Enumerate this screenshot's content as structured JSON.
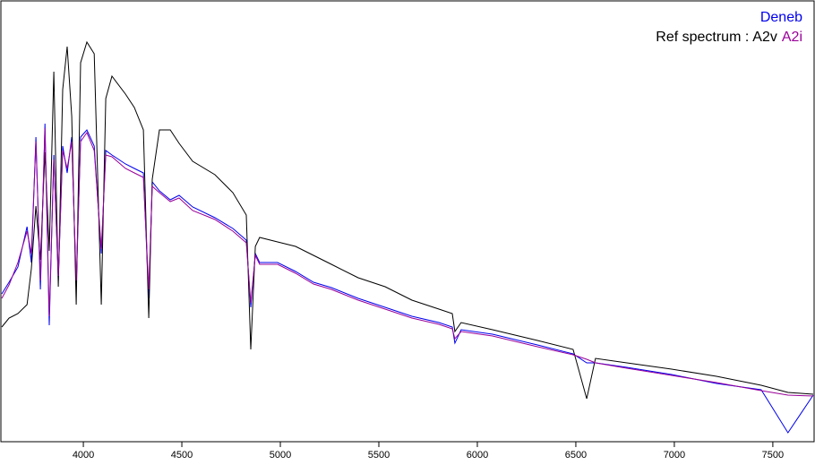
{
  "chart_data": {
    "type": "line",
    "legend_prefix": "Ref spectrum :",
    "x": [
      3586,
      3623,
      3668,
      3714,
      3736,
      3759,
      3782,
      3805,
      3827,
      3850,
      3873,
      3895,
      3918,
      3941,
      3964,
      3986,
      4018,
      4055,
      4091,
      4114,
      4145,
      4214,
      4259,
      4305,
      4332,
      4350,
      4386,
      4441,
      4486,
      4555,
      4668,
      4759,
      4827,
      4850,
      4873,
      4895,
      4986,
      5077,
      5168,
      5259,
      5395,
      5532,
      5668,
      5805,
      5873,
      5886,
      5918,
      6077,
      6305,
      6486,
      6555,
      6600,
      6759,
      6986,
      7214,
      7441,
      7577,
      7705
    ],
    "series": [
      {
        "name": "Deneb",
        "color": "#0000ee",
        "values": [
          165,
          178,
          195,
          240,
          200,
          340,
          170,
          355,
          130,
          320,
          180,
          330,
          300,
          340,
          173,
          340,
          348,
          330,
          210,
          325,
          320,
          310,
          305,
          300,
          160,
          290,
          280,
          270,
          275,
          262,
          250,
          238,
          225,
          150,
          210,
          200,
          200,
          190,
          178,
          172,
          160,
          150,
          140,
          133,
          128,
          110,
          125,
          120,
          108,
          98,
          88,
          88,
          83,
          75,
          65,
          58,
          10,
          52
        ]
      },
      {
        "name": "A2v",
        "color": "#000000",
        "values": [
          128,
          138,
          143,
          153,
          193,
          263,
          203,
          323,
          213,
          413,
          173,
          393,
          441,
          363,
          153,
          423,
          446,
          433,
          153,
          383,
          408,
          388,
          373,
          348,
          138,
          293,
          348,
          348,
          333,
          313,
          298,
          278,
          253,
          103,
          218,
          228,
          223,
          218,
          208,
          198,
          183,
          173,
          158,
          148,
          143,
          123,
          133,
          125,
          113,
          103,
          48,
          93,
          88,
          81,
          73,
          63,
          55,
          53
        ]
      },
      {
        "name": "A2i",
        "color": "#990099",
        "values": [
          160,
          175,
          200,
          235,
          210,
          335,
          180,
          350,
          140,
          315,
          185,
          325,
          305,
          335,
          180,
          335,
          345,
          325,
          215,
          320,
          318,
          305,
          300,
          295,
          170,
          285,
          278,
          268,
          272,
          258,
          248,
          235,
          222,
          155,
          208,
          198,
          198,
          188,
          176,
          170,
          158,
          148,
          138,
          131,
          126,
          115,
          123,
          118,
          106,
          97,
          92,
          88,
          82,
          74,
          66,
          57,
          52,
          51
        ]
      }
    ],
    "xlim": [
      3586,
      7705
    ],
    "ylim": [
      0,
      491
    ],
    "xticks": [
      4000,
      4500,
      5000,
      5500,
      6000,
      6500,
      7000,
      7500
    ]
  }
}
